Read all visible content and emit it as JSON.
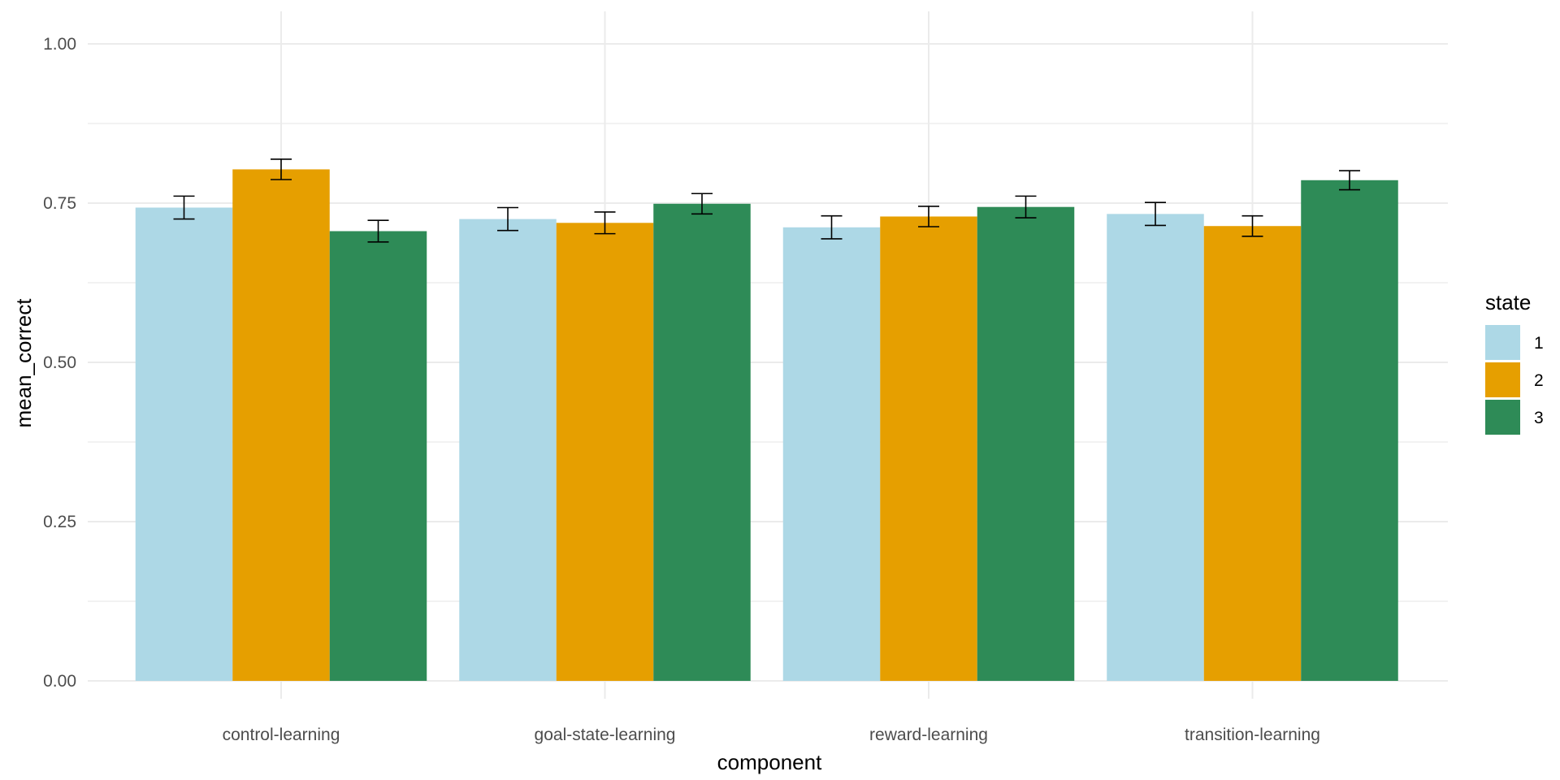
{
  "chart_data": {
    "type": "bar",
    "title": "",
    "xlabel": "component",
    "ylabel": "mean_correct",
    "categories": [
      "control-learning",
      "goal-state-learning",
      "reward-learning",
      "transition-learning"
    ],
    "series": [
      {
        "name": "1",
        "values": [
          0.743,
          0.725,
          0.712,
          0.733
        ],
        "error": [
          0.018,
          0.018,
          0.018,
          0.018
        ]
      },
      {
        "name": "2",
        "values": [
          0.803,
          0.719,
          0.729,
          0.714
        ],
        "error": [
          0.016,
          0.017,
          0.016,
          0.016
        ]
      },
      {
        "name": "3",
        "values": [
          0.706,
          0.749,
          0.744,
          0.786
        ],
        "error": [
          0.017,
          0.016,
          0.017,
          0.015
        ]
      }
    ],
    "colors": [
      "#add8e6",
      "#e69f00",
      "#2e8b57"
    ],
    "ylim": [
      0,
      1.0
    ],
    "yticks": [
      0.0,
      0.25,
      0.5,
      0.75,
      1.0
    ],
    "ytick_labels": [
      "0.00",
      "0.25",
      "0.50",
      "0.75",
      "1.00"
    ],
    "grid": true,
    "legend": {
      "title": "state",
      "position": "right"
    }
  }
}
